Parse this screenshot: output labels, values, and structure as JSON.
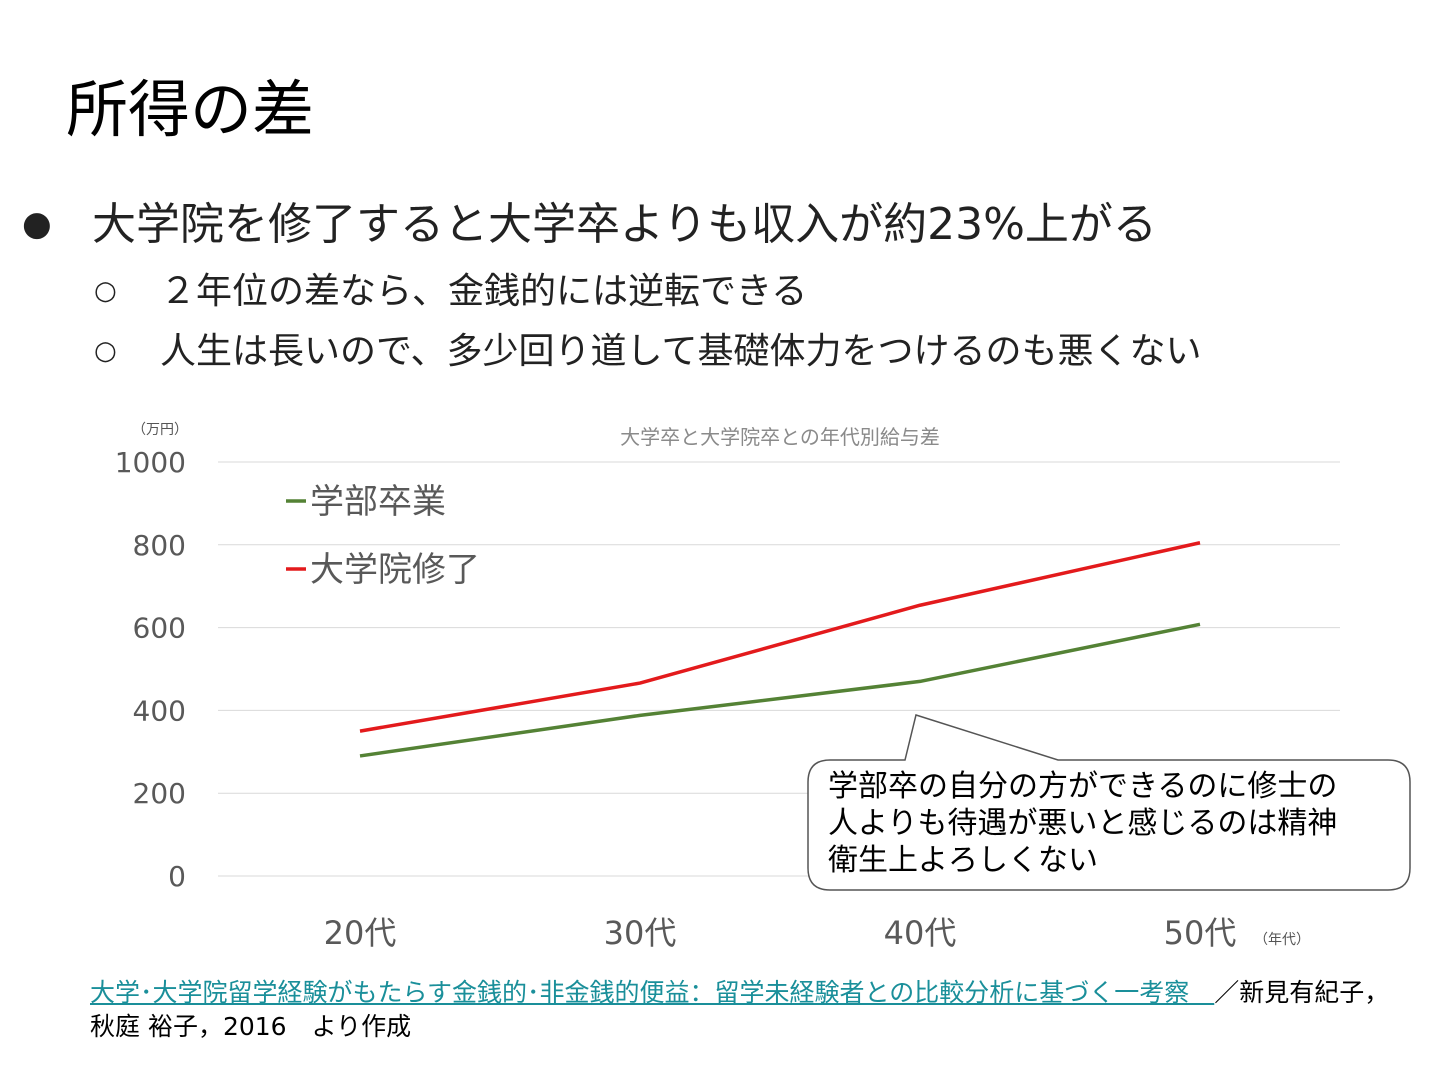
{
  "title": "所得の差",
  "bullets": {
    "main": {
      "mark": "●",
      "text": "大学院を修了すると大学卒よりも収入が約23%上がる"
    },
    "sub": [
      {
        "mark": "○",
        "text": "２年位の差なら、金銭的には逆転できる"
      },
      {
        "mark": "○",
        "text": "人生は長いので、多少回り道して基礎体力をつけるのも悪くない"
      }
    ]
  },
  "chart_data": {
    "type": "line",
    "title": "大学卒と大学院卒との年代別給与差",
    "ylabel": "（万円）",
    "xlabel": "（年代）",
    "categories": [
      "20代",
      "30代",
      "40代",
      "50代"
    ],
    "ylim": [
      0,
      1000
    ],
    "yticks": [
      "0",
      "200",
      "400",
      "600",
      "800",
      "1000"
    ],
    "grid": true,
    "legend_position": "top-left",
    "series": [
      {
        "name": "学部卒業",
        "color": "#548235",
        "values": [
          290,
          388,
          470,
          608
        ]
      },
      {
        "name": "大学院修了",
        "color": "#e31a1c",
        "values": [
          350,
          466,
          654,
          805
        ]
      }
    ]
  },
  "callout": {
    "lines": [
      "学部卒の自分の方ができるのに修士の",
      "人よりも待遇が悪いと感じるのは精神",
      "衛生上よろしくない"
    ]
  },
  "source": {
    "link_text": "大学･大学院留学経験がもたらす金銭的･非金銭的便益：留学未経験者との比較分析に基づく一考察　",
    "rest": "／新見有紀子，秋庭 裕子，2016　より作成"
  }
}
